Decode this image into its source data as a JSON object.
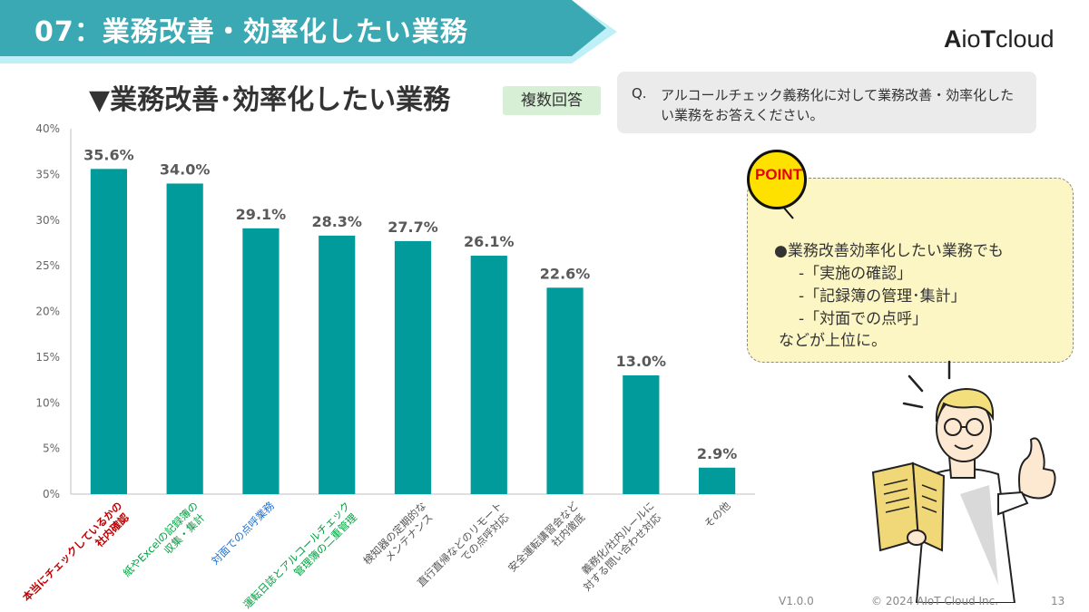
{
  "header": {
    "title": "07：業務改善・効率化したい業務",
    "logo": {
      "prefix": "A",
      "mid": "io",
      "cap": "T",
      "suffix": "cloud"
    }
  },
  "subtitle": "▼業務改善･効率化したい業務",
  "badge": "複数回答",
  "question": {
    "label": "Q.",
    "text": "アルコールチェック義務化に対して業務改善・効率化したい業務をお答えください。"
  },
  "point": {
    "label": "POINT",
    "lines": [
      "●業務改善効率化したい業務でも",
      "-「実施の確認」",
      "-「記録簿の管理･集計」",
      "-「対面での点呼」",
      "などが上位に。"
    ]
  },
  "footer": {
    "version": "V1.0.0",
    "copyright": "© 2024 AIoT Cloud Inc.",
    "page": "13"
  },
  "colors": {
    "bar": "#009b9a",
    "banner": "#3aa9b3",
    "red": "#c00000",
    "green": "#00a040",
    "blue": "#1f6fd0",
    "gray": "#555555"
  },
  "chart_data": {
    "type": "bar",
    "title": "業務改善･効率化したい業務",
    "ylim": [
      0,
      40
    ],
    "yticks": [
      "0%",
      "5%",
      "10%",
      "15%",
      "20%",
      "25%",
      "30%",
      "35%",
      "40%"
    ],
    "values": [
      35.6,
      34.0,
      29.1,
      28.3,
      27.7,
      26.1,
      22.6,
      13.0,
      2.9
    ],
    "value_labels": [
      "35.6%",
      "34.0%",
      "29.1%",
      "28.3%",
      "27.7%",
      "26.1%",
      "22.6%",
      "13.0%",
      "2.9%"
    ],
    "categories": [
      [
        "本当にチェックしているかの",
        "社内確認"
      ],
      [
        "紙やExcelの記録簿の",
        "収集・集計"
      ],
      [
        "対面での点呼業務"
      ],
      [
        "運転日誌とアルコールチェック",
        "管理簿の二重管理"
      ],
      [
        "検知器の定期的な",
        "メンテナンス"
      ],
      [
        "直行直帰などのリモート",
        "での点呼対応"
      ],
      [
        "安全運転講習会など",
        "社内徹底"
      ],
      [
        "義務化/社内ルールに",
        "対する問い合わせ対応"
      ],
      [
        "その他"
      ]
    ],
    "category_colors": [
      "#c00000",
      "#00a040",
      "#1f6fd0",
      "#00a040",
      "#555555",
      "#555555",
      "#555555",
      "#555555",
      "#555555"
    ]
  }
}
